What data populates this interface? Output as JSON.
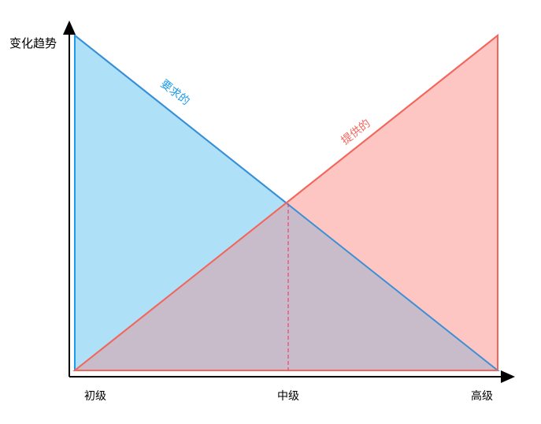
{
  "diagram": {
    "y_axis_label": "变化趋势",
    "x_ticks": [
      "初级",
      "中级",
      "高级"
    ],
    "demand_label": "要求的",
    "supply_label": "提供的",
    "colors": {
      "demand_fill": "#aee0f8",
      "demand_stroke": "#1e9be6",
      "supply_fill": "#fdc6c3",
      "supply_stroke": "#f2665c",
      "overlap_fill": "#c8bccb",
      "dashed_line": "#e8457a",
      "axis": "#000000"
    }
  }
}
